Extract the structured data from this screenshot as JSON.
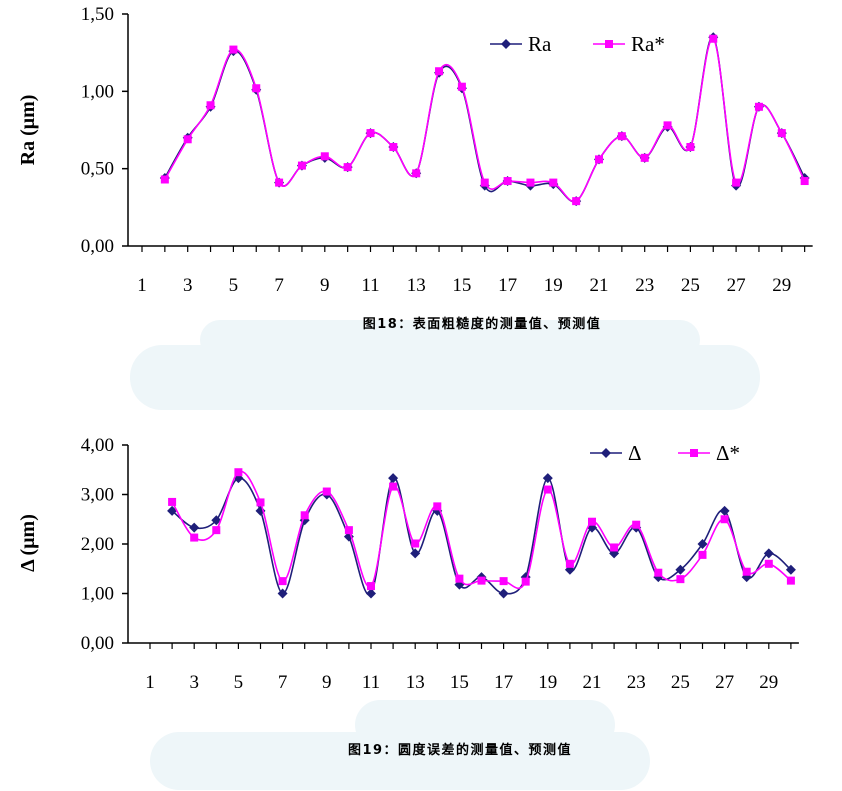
{
  "chart_data": [
    {
      "type": "line",
      "caption": "图18：表面粗糙度的测量值、预测值",
      "ylabel": "Ra (μm)",
      "xlabel": "",
      "ylim": [
        0,
        1.5
      ],
      "yticks": [
        "0,00",
        "0,50",
        "1,00",
        "1,50"
      ],
      "xlim": [
        1,
        30
      ],
      "xticks": [
        "1",
        "3",
        "5",
        "7",
        "9",
        "11",
        "13",
        "15",
        "17",
        "19",
        "21",
        "23",
        "25",
        "27",
        "29"
      ],
      "legend_position": "top-right",
      "x": [
        2,
        3,
        4,
        5,
        6,
        7,
        8,
        9,
        10,
        11,
        12,
        13,
        14,
        15,
        16,
        17,
        18,
        19,
        20,
        21,
        22,
        23,
        24,
        25,
        26,
        27,
        28,
        29,
        30
      ],
      "series": [
        {
          "name": "Ra",
          "color": "#1f1f7a",
          "marker": "diamond",
          "values": [
            0.44,
            0.7,
            0.9,
            1.26,
            1.01,
            0.41,
            0.52,
            0.57,
            0.51,
            0.73,
            0.64,
            0.47,
            1.12,
            1.02,
            0.39,
            0.42,
            0.39,
            0.4,
            0.29,
            0.56,
            0.71,
            0.57,
            0.77,
            0.64,
            1.35,
            0.39,
            0.9,
            0.73,
            0.44
          ]
        },
        {
          "name": "Ra*",
          "color": "#ff00ff",
          "marker": "square",
          "values": [
            0.43,
            0.69,
            0.91,
            1.27,
            1.02,
            0.41,
            0.52,
            0.58,
            0.51,
            0.73,
            0.64,
            0.47,
            1.13,
            1.03,
            0.41,
            0.42,
            0.41,
            0.41,
            0.29,
            0.56,
            0.71,
            0.57,
            0.78,
            0.64,
            1.34,
            0.41,
            0.9,
            0.73,
            0.42
          ]
        }
      ]
    },
    {
      "type": "line",
      "caption": "图19：圆度误差的测量值、预测值",
      "ylabel": "Δ (μm)",
      "xlabel": "",
      "ylim": [
        0,
        4
      ],
      "yticks": [
        "0,00",
        "1,00",
        "2,00",
        "3,00",
        "4,00"
      ],
      "xlim": [
        1,
        30
      ],
      "xticks": [
        "1",
        "3",
        "5",
        "7",
        "9",
        "11",
        "13",
        "15",
        "17",
        "19",
        "21",
        "23",
        "25",
        "27",
        "29"
      ],
      "legend_position": "top-right",
      "x": [
        2,
        3,
        4,
        5,
        6,
        7,
        8,
        9,
        10,
        11,
        12,
        13,
        14,
        15,
        16,
        17,
        18,
        19,
        20,
        21,
        22,
        23,
        24,
        25,
        26,
        27,
        28,
        29,
        30
      ],
      "series": [
        {
          "name": "Δ",
          "color": "#1f1f7a",
          "marker": "diamond",
          "values": [
            2.67,
            2.33,
            2.48,
            3.33,
            2.67,
            1.0,
            2.48,
            3.0,
            2.15,
            1.0,
            3.33,
            1.81,
            2.67,
            1.18,
            1.33,
            1.0,
            1.33,
            3.33,
            1.48,
            2.33,
            1.81,
            2.33,
            1.33,
            1.48,
            2.0,
            2.67,
            1.33,
            1.81,
            1.48
          ]
        },
        {
          "name": "Δ*",
          "color": "#ff00ff",
          "marker": "square",
          "values": [
            2.85,
            2.13,
            2.28,
            3.45,
            2.84,
            1.25,
            2.58,
            3.06,
            2.28,
            1.15,
            3.16,
            2.01,
            2.76,
            1.3,
            1.26,
            1.25,
            1.24,
            3.1,
            1.6,
            2.45,
            1.93,
            2.39,
            1.42,
            1.29,
            1.78,
            2.5,
            1.44,
            1.6,
            1.26
          ]
        }
      ]
    }
  ]
}
